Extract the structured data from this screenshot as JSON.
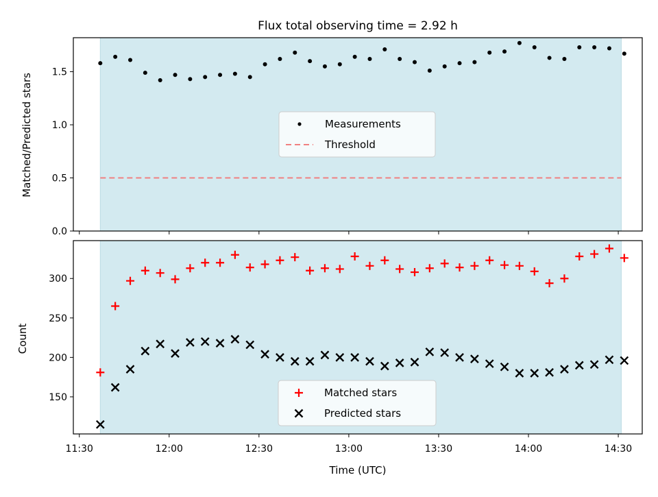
{
  "chart_data": [
    {
      "type": "scatter",
      "title": "Flux total observing time = 2.92 h",
      "xlabel": "",
      "ylabel": "Matched/Predicted stars",
      "ylim": [
        0,
        1.82
      ],
      "yticks": [
        0.0,
        0.5,
        1.0,
        1.5
      ],
      "ytick_labels": [
        "0.0",
        "0.5",
        "1.0",
        "1.5"
      ],
      "x_range": [
        "11:28",
        "14:38"
      ],
      "shaded_interval": [
        "11:37",
        "14:31"
      ],
      "shade_color": "#d3eaf0",
      "threshold": {
        "name": "Threshold",
        "value": 0.5,
        "color": "#f08080",
        "style": "dashed"
      },
      "x": [
        "11:37",
        "11:42",
        "11:47",
        "11:52",
        "11:57",
        "12:02",
        "12:07",
        "12:12",
        "12:17",
        "12:22",
        "12:27",
        "12:32",
        "12:37",
        "12:42",
        "12:47",
        "12:52",
        "12:57",
        "13:02",
        "13:07",
        "13:12",
        "13:17",
        "13:22",
        "13:27",
        "13:32",
        "13:37",
        "13:42",
        "13:47",
        "13:52",
        "13:57",
        "14:02",
        "14:07",
        "14:12",
        "14:17",
        "14:22",
        "14:27",
        "14:32"
      ],
      "series": [
        {
          "name": "Measurements",
          "color": "#000000",
          "marker": "dot",
          "values": [
            1.58,
            1.64,
            1.61,
            1.49,
            1.42,
            1.47,
            1.43,
            1.45,
            1.47,
            1.48,
            1.45,
            1.57,
            1.62,
            1.68,
            1.6,
            1.55,
            1.57,
            1.64,
            1.62,
            1.71,
            1.62,
            1.59,
            1.51,
            1.55,
            1.58,
            1.59,
            1.68,
            1.69,
            1.77,
            1.73,
            1.63,
            1.62,
            1.73,
            1.73,
            1.72,
            1.67
          ]
        }
      ],
      "legend": {
        "location": "center",
        "entries": [
          "Measurements",
          "Threshold"
        ]
      },
      "grid": false
    },
    {
      "type": "scatter",
      "title": "",
      "xlabel": "Time (UTC)",
      "ylabel": "Count",
      "ylim": [
        103,
        348
      ],
      "yticks": [
        150,
        200,
        250,
        300
      ],
      "ytick_labels": [
        "150",
        "200",
        "250",
        "300"
      ],
      "x_range": [
        "11:28",
        "14:38"
      ],
      "xticks": [
        "11:30",
        "12:00",
        "12:30",
        "13:00",
        "13:30",
        "14:00",
        "14:30"
      ],
      "xtick_labels": [
        "11:30",
        "12:00",
        "12:30",
        "13:00",
        "13:30",
        "14:00",
        "14:30"
      ],
      "shaded_interval": [
        "11:37",
        "14:31"
      ],
      "shade_color": "#d3eaf0",
      "x": [
        "11:37",
        "11:42",
        "11:47",
        "11:52",
        "11:57",
        "12:02",
        "12:07",
        "12:12",
        "12:17",
        "12:22",
        "12:27",
        "12:32",
        "12:37",
        "12:42",
        "12:47",
        "12:52",
        "12:57",
        "13:02",
        "13:07",
        "13:12",
        "13:17",
        "13:22",
        "13:27",
        "13:32",
        "13:37",
        "13:42",
        "13:47",
        "13:52",
        "13:57",
        "14:02",
        "14:07",
        "14:12",
        "14:17",
        "14:22",
        "14:27",
        "14:32"
      ],
      "series": [
        {
          "name": "Matched stars",
          "color": "#ff0000",
          "marker": "plus",
          "values": [
            181,
            265,
            297,
            310,
            307,
            299,
            313,
            320,
            320,
            330,
            314,
            318,
            323,
            327,
            310,
            313,
            312,
            328,
            316,
            323,
            312,
            308,
            313,
            319,
            314,
            316,
            323,
            317,
            316,
            309,
            294,
            300,
            328,
            331,
            338,
            326
          ]
        },
        {
          "name": "Predicted stars",
          "color": "#000000",
          "marker": "x",
          "values": [
            115,
            162,
            185,
            208,
            217,
            205,
            219,
            220,
            218,
            223,
            216,
            204,
            200,
            195,
            195,
            203,
            200,
            200,
            195,
            189,
            193,
            194,
            207,
            206,
            200,
            198,
            192,
            188,
            180,
            180,
            181,
            185,
            190,
            191,
            197,
            196
          ]
        }
      ],
      "legend": {
        "location": "lower center",
        "entries": [
          "Matched stars",
          "Predicted stars"
        ]
      },
      "grid": false
    }
  ]
}
